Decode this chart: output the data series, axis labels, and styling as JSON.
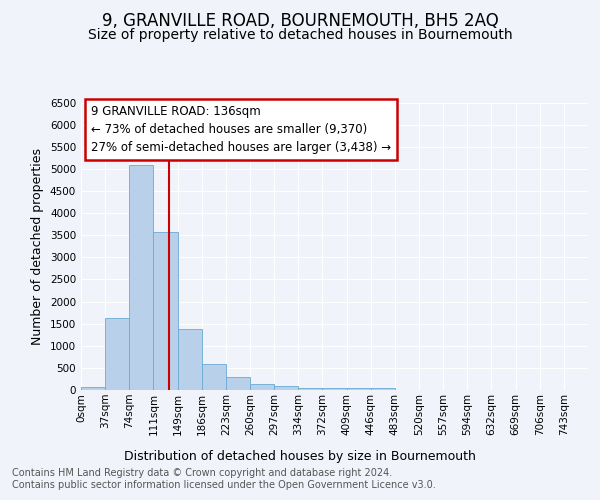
{
  "title": "9, GRANVILLE ROAD, BOURNEMOUTH, BH5 2AQ",
  "subtitle": "Size of property relative to detached houses in Bournemouth",
  "xlabel": "Distribution of detached houses by size in Bournemouth",
  "ylabel": "Number of detached properties",
  "bin_labels": [
    "0sqm",
    "37sqm",
    "74sqm",
    "111sqm",
    "149sqm",
    "186sqm",
    "223sqm",
    "260sqm",
    "297sqm",
    "334sqm",
    "372sqm",
    "409sqm",
    "446sqm",
    "483sqm",
    "520sqm",
    "557sqm",
    "594sqm",
    "632sqm",
    "669sqm",
    "706sqm",
    "743sqm"
  ],
  "bar_heights": [
    75,
    1620,
    5080,
    3580,
    1390,
    580,
    290,
    145,
    85,
    55,
    50,
    50,
    55,
    0,
    0,
    0,
    0,
    0,
    0,
    0,
    0
  ],
  "bar_color": "#b8d0ea",
  "bar_edge_color": "#6aaad4",
  "bar_width": 1.0,
  "ylim": [
    0,
    6500
  ],
  "yticks": [
    0,
    500,
    1000,
    1500,
    2000,
    2500,
    3000,
    3500,
    4000,
    4500,
    5000,
    5500,
    6000,
    6500
  ],
  "red_line_bin": 4,
  "annotation_text": "9 GRANVILLE ROAD: 136sqm\n← 73% of detached houses are smaller (9,370)\n27% of semi-detached houses are larger (3,438) →",
  "annotation_box_color": "#ffffff",
  "annotation_box_edge": "#cc0000",
  "footer_line1": "Contains HM Land Registry data © Crown copyright and database right 2024.",
  "footer_line2": "Contains public sector information licensed under the Open Government Licence v3.0.",
  "background_color": "#f0f4fa",
  "plot_bg_color": "#f0f4fa",
  "grid_color": "#ffffff",
  "title_fontsize": 12,
  "subtitle_fontsize": 10,
  "axis_label_fontsize": 9,
  "tick_fontsize": 7.5,
  "footer_fontsize": 7
}
